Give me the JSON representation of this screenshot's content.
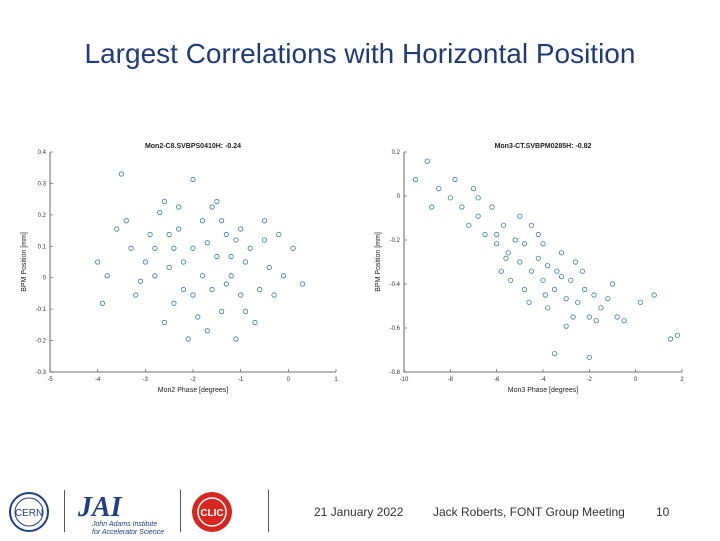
{
  "slide": {
    "title": "Largest Correlations with Horizontal Position",
    "date": "21 January 2022",
    "author": "Jack Roberts, FONT Group Meeting",
    "page_number": "10"
  },
  "logos": {
    "cern_text": "CERN",
    "jai_text": "JAI",
    "jai_line1": "John Adams Institute",
    "jai_line2": "for Accelerator Science",
    "clic_text": "CLIC"
  },
  "colors": {
    "title": "#1f3c78",
    "marker": "#2e7fb0",
    "jai_blue": "#1d3f8a",
    "clic_red": "#d7261e"
  },
  "chart_data": [
    {
      "type": "scatter",
      "title": "Mon2-C8.SVBPS0410H: -0.24",
      "xlabel": "Mon2 Phase [degrees]",
      "ylabel": "BPM Position [mm]",
      "xlim": [
        -5,
        1
      ],
      "ylim": [
        -0.4,
        0.4
      ],
      "xticks": [
        "-5",
        "-4",
        "-3",
        "-2",
        "-1",
        "0",
        "1"
      ],
      "yticks": [
        "0.4",
        "0.3",
        "0.2",
        "0.1",
        "0",
        "-0.1",
        "-0.2",
        "-0.3"
      ],
      "correlation": -0.24,
      "marker_color": "#2e7fb0",
      "points": [
        [
          -3.5,
          0.32
        ],
        [
          -4.0,
          0.0
        ],
        [
          -3.4,
          0.15
        ],
        [
          -3.8,
          -0.05
        ],
        [
          -3.9,
          -0.15
        ],
        [
          -3.2,
          -0.12
        ],
        [
          -3.3,
          0.05
        ],
        [
          -2.9,
          0.1
        ],
        [
          -2.7,
          0.18
        ],
        [
          -2.5,
          0.1
        ],
        [
          -2.3,
          0.2
        ],
        [
          -2.2,
          0.0
        ],
        [
          -2.0,
          0.05
        ],
        [
          -1.8,
          0.15
        ],
        [
          -1.6,
          -0.1
        ],
        [
          -1.5,
          0.02
        ],
        [
          -1.3,
          0.1
        ],
        [
          -1.2,
          -0.05
        ],
        [
          -1.0,
          0.12
        ],
        [
          -0.9,
          -0.18
        ],
        [
          -0.8,
          0.05
        ],
        [
          -0.6,
          -0.1
        ],
        [
          -0.5,
          0.08
        ],
        [
          -0.4,
          -0.02
        ],
        [
          -0.3,
          -0.12
        ],
        [
          -0.2,
          0.1
        ],
        [
          -0.1,
          -0.05
        ],
        [
          0.1,
          0.05
        ],
        [
          0.3,
          -0.08
        ],
        [
          -2.6,
          -0.22
        ],
        [
          -2.4,
          -0.15
        ],
        [
          -2.1,
          -0.28
        ],
        [
          -1.9,
          -0.2
        ],
        [
          -1.7,
          -0.25
        ],
        [
          -1.4,
          -0.18
        ],
        [
          -1.1,
          -0.28
        ],
        [
          -0.7,
          -0.22
        ],
        [
          -2.8,
          -0.05
        ],
        [
          -3.0,
          0.0
        ],
        [
          -2.0,
          0.3
        ],
        [
          -1.5,
          0.22
        ],
        [
          -2.3,
          0.12
        ],
        [
          -1.6,
          0.2
        ],
        [
          -2.5,
          -0.02
        ],
        [
          -1.7,
          0.07
        ],
        [
          -2.2,
          -0.1
        ],
        [
          -1.2,
          0.02
        ],
        [
          -0.9,
          0.0
        ],
        [
          -2.8,
          0.05
        ],
        [
          -3.1,
          -0.07
        ],
        [
          -1.4,
          0.15
        ],
        [
          -1.0,
          -0.12
        ],
        [
          -2.6,
          0.22
        ],
        [
          -0.5,
          0.15
        ],
        [
          -3.6,
          0.12
        ],
        [
          -1.3,
          -0.08
        ],
        [
          -1.8,
          -0.05
        ],
        [
          -2.4,
          0.05
        ],
        [
          -2.0,
          -0.12
        ],
        [
          -1.1,
          0.08
        ]
      ]
    },
    {
      "type": "scatter",
      "title": "Mon3-CT.SVBPM0285H: -0.82",
      "xlabel": "Mon3 Phase [degrees]",
      "ylabel": "BPM Position [mm]",
      "xlim": [
        -10,
        2
      ],
      "ylim": [
        -1.0,
        0.2
      ],
      "xticks": [
        "-10",
        "-8",
        "-6",
        "-4",
        "-2",
        "0",
        "2"
      ],
      "yticks": [
        "0.2",
        "0",
        "-0.2",
        "-0.4",
        "-0.6",
        "-0.8"
      ],
      "correlation": -0.82,
      "marker_color": "#2e7fb0",
      "points": [
        [
          -9.0,
          0.15
        ],
        [
          -9.5,
          0.05
        ],
        [
          -8.5,
          0.0
        ],
        [
          -8.0,
          -0.05
        ],
        [
          -8.8,
          -0.1
        ],
        [
          -7.5,
          -0.1
        ],
        [
          -7.2,
          -0.2
        ],
        [
          -7.8,
          0.05
        ],
        [
          -6.8,
          -0.15
        ],
        [
          -6.5,
          -0.25
        ],
        [
          -6.2,
          -0.1
        ],
        [
          -6.0,
          -0.3
        ],
        [
          -5.7,
          -0.2
        ],
        [
          -5.5,
          -0.35
        ],
        [
          -5.2,
          -0.28
        ],
        [
          -5.0,
          -0.4
        ],
        [
          -4.8,
          -0.3
        ],
        [
          -4.5,
          -0.45
        ],
        [
          -4.2,
          -0.38
        ],
        [
          -4.0,
          -0.5
        ],
        [
          -3.8,
          -0.42
        ],
        [
          -3.5,
          -0.55
        ],
        [
          -3.2,
          -0.48
        ],
        [
          -3.0,
          -0.6
        ],
        [
          -2.8,
          -0.5
        ],
        [
          -2.5,
          -0.62
        ],
        [
          -2.2,
          -0.55
        ],
        [
          -2.0,
          -0.7
        ],
        [
          -1.8,
          -0.58
        ],
        [
          -1.5,
          -0.65
        ],
        [
          -1.2,
          -0.6
        ],
        [
          -0.8,
          -0.7
        ],
        [
          -0.5,
          -0.72
        ],
        [
          0.2,
          -0.62
        ],
        [
          0.8,
          -0.58
        ],
        [
          1.8,
          -0.8
        ],
        [
          1.5,
          -0.82
        ],
        [
          -3.5,
          -0.9
        ],
        [
          -2.0,
          -0.92
        ],
        [
          -5.8,
          -0.45
        ],
        [
          -6.8,
          -0.05
        ],
        [
          -4.5,
          -0.2
        ],
        [
          -4.0,
          -0.3
        ],
        [
          -3.2,
          -0.35
        ],
        [
          -2.6,
          -0.4
        ],
        [
          -5.0,
          -0.15
        ],
        [
          -3.8,
          -0.65
        ],
        [
          -4.8,
          -0.55
        ],
        [
          -3.0,
          -0.75
        ],
        [
          -6.0,
          -0.25
        ],
        [
          -4.2,
          -0.25
        ],
        [
          -3.4,
          -0.45
        ],
        [
          -2.7,
          -0.7
        ],
        [
          -5.4,
          -0.5
        ],
        [
          -7.0,
          0.0
        ],
        [
          -2.3,
          -0.45
        ],
        [
          -1.7,
          -0.72
        ],
        [
          -3.9,
          -0.58
        ],
        [
          -4.6,
          -0.62
        ],
        [
          -5.6,
          -0.38
        ],
        [
          -1.0,
          -0.52
        ]
      ]
    }
  ]
}
